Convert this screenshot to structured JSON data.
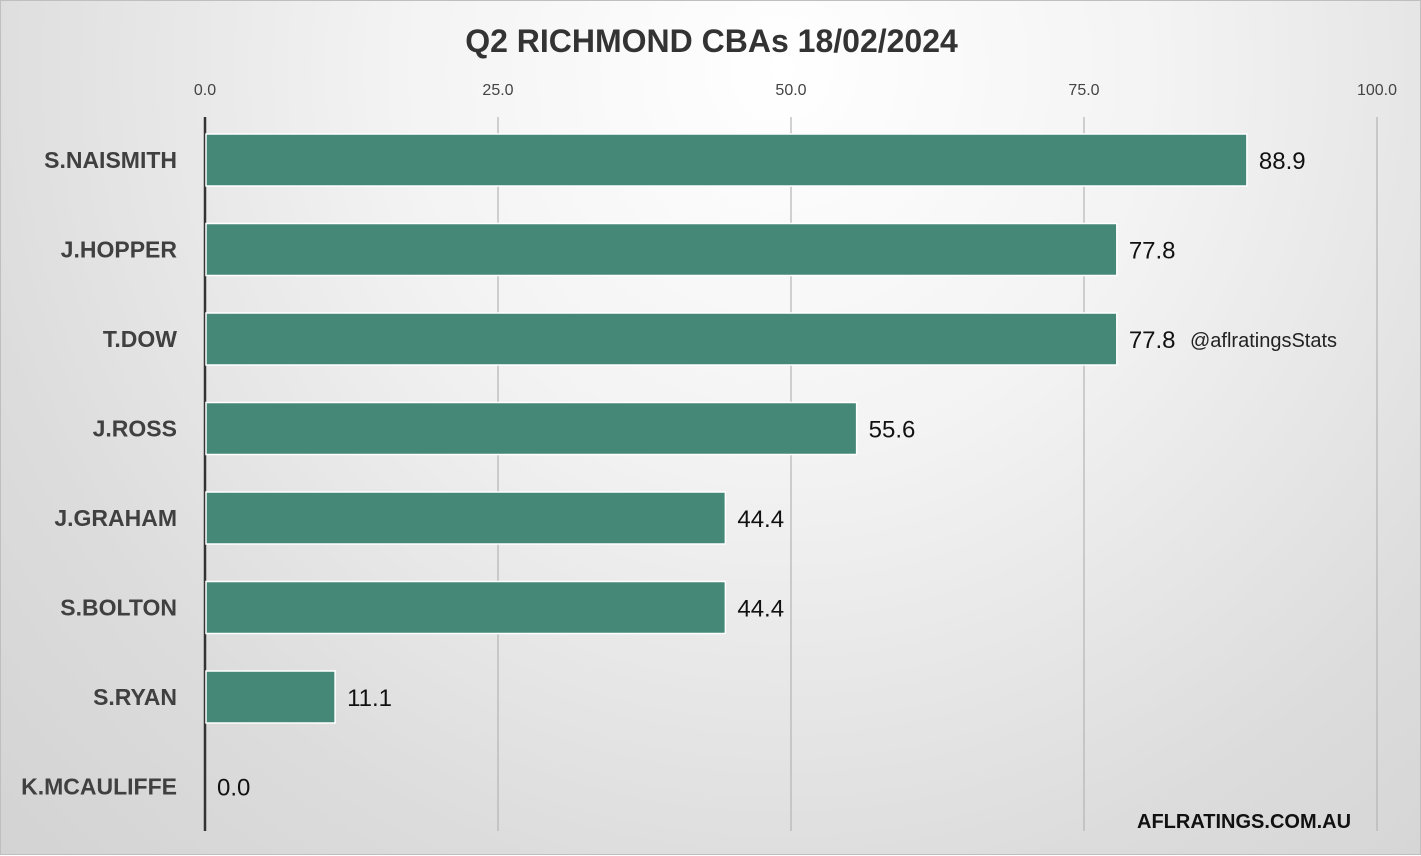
{
  "chart_data": {
    "type": "bar",
    "orientation": "horizontal",
    "title": "Q2 RICHMOND CBAs 18/02/2024",
    "categories": [
      "S.NAISMITH",
      "J.HOPPER",
      "T.DOW",
      "J.ROSS",
      "J.GRAHAM",
      "S.BOLTON",
      "S.RYAN",
      "K.MCAULIFFE"
    ],
    "values": [
      88.9,
      77.8,
      77.8,
      55.6,
      44.4,
      44.4,
      11.1,
      0.0
    ],
    "value_labels": [
      "88.9",
      "77.8",
      "77.8",
      "55.6",
      "44.4",
      "44.4",
      "11.1",
      "0.0"
    ],
    "xlim": [
      0,
      100
    ],
    "x_ticks": [
      "0.0",
      "25.0",
      "50.0",
      "75.0",
      "100.0"
    ],
    "x_axis_position": "top",
    "grid": true,
    "legend": false,
    "bar_color": "#468878",
    "annotations": {
      "watermark": "@aflratingsStats",
      "site": "AFLRATINGS.COM.AU"
    }
  }
}
